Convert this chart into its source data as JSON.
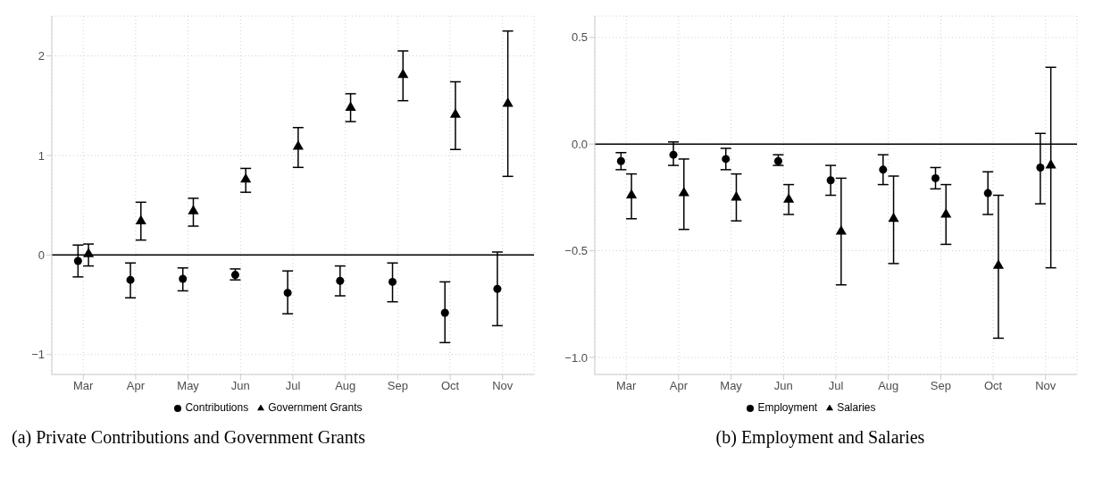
{
  "chart_data": [
    {
      "type": "scatter",
      "title": "(a) Private Contributions and Government Grants",
      "categories": [
        "Mar",
        "Apr",
        "May",
        "Jun",
        "Jul",
        "Aug",
        "Sep",
        "Oct",
        "Nov"
      ],
      "ylim": [
        -1.2,
        2.4
      ],
      "yticks": [
        {
          "value": -1,
          "label": "−1"
        },
        0,
        1,
        2
      ],
      "grid": true,
      "legend": "bottom",
      "ref_lines": [
        {
          "axis": "y",
          "value": 0,
          "color": "#000000"
        }
      ],
      "series": [
        {
          "name": "Contributions",
          "color": "#000000",
          "marker": "circle",
          "values": [
            -0.06,
            -0.25,
            -0.24,
            -0.2,
            -0.38,
            -0.26,
            -0.27,
            -0.58,
            -0.34
          ],
          "errors": [
            [
              -0.22,
              0.1
            ],
            [
              -0.43,
              -0.08
            ],
            [
              -0.36,
              -0.13
            ],
            [
              -0.25,
              -0.14
            ],
            [
              -0.59,
              -0.16
            ],
            [
              -0.41,
              -0.11
            ],
            [
              -0.47,
              -0.08
            ],
            [
              -0.88,
              -0.27
            ],
            [
              -0.71,
              0.03
            ]
          ]
        },
        {
          "name": "Government Grants",
          "color": "#000000",
          "marker": "triangle",
          "values": [
            0.01,
            0.34,
            0.44,
            0.76,
            1.09,
            1.48,
            1.81,
            1.41,
            1.52
          ],
          "errors": [
            [
              -0.11,
              0.11
            ],
            [
              0.15,
              0.53
            ],
            [
              0.29,
              0.57
            ],
            [
              0.63,
              0.87
            ],
            [
              0.88,
              1.28
            ],
            [
              1.34,
              1.62
            ],
            [
              1.55,
              2.05
            ],
            [
              1.06,
              1.74
            ],
            [
              0.79,
              2.25
            ]
          ]
        }
      ]
    },
    {
      "type": "scatter",
      "title": "(b) Employment and Salaries",
      "categories": [
        "Mar",
        "Apr",
        "May",
        "Jun",
        "Jul",
        "Aug",
        "Sep",
        "Oct",
        "Nov"
      ],
      "ylim": [
        -1.08,
        0.6
      ],
      "yticks": [
        {
          "value": -1,
          "label": "−1.0"
        },
        {
          "value": -0.5,
          "label": "−0.5"
        },
        {
          "value": 0,
          "label": "0.0"
        },
        0.5
      ],
      "grid": true,
      "legend": "bottom",
      "ref_lines": [
        {
          "axis": "y",
          "value": 0,
          "color": "#000000"
        }
      ],
      "series": [
        {
          "name": "Employment",
          "color": "#000000",
          "marker": "circle",
          "values": [
            -0.08,
            -0.05,
            -0.07,
            -0.08,
            -0.17,
            -0.12,
            -0.16,
            -0.23,
            -0.11
          ],
          "errors": [
            [
              -0.12,
              -0.04
            ],
            [
              -0.1,
              0.01
            ],
            [
              -0.12,
              -0.02
            ],
            [
              -0.1,
              -0.05
            ],
            [
              -0.24,
              -0.1
            ],
            [
              -0.19,
              -0.05
            ],
            [
              -0.21,
              -0.11
            ],
            [
              -0.33,
              -0.13
            ],
            [
              -0.28,
              0.05
            ]
          ]
        },
        {
          "name": "Salaries",
          "color": "#000000",
          "marker": "triangle",
          "values": [
            -0.24,
            -0.23,
            -0.25,
            -0.26,
            -0.41,
            -0.35,
            -0.33,
            -0.57,
            -0.1
          ],
          "errors": [
            [
              -0.35,
              -0.14
            ],
            [
              -0.4,
              -0.07
            ],
            [
              -0.36,
              -0.14
            ],
            [
              -0.33,
              -0.19
            ],
            [
              -0.66,
              -0.16
            ],
            [
              -0.56,
              -0.15
            ],
            [
              -0.47,
              -0.19
            ],
            [
              -0.91,
              -0.24
            ],
            [
              -0.58,
              0.36
            ]
          ]
        }
      ]
    }
  ]
}
